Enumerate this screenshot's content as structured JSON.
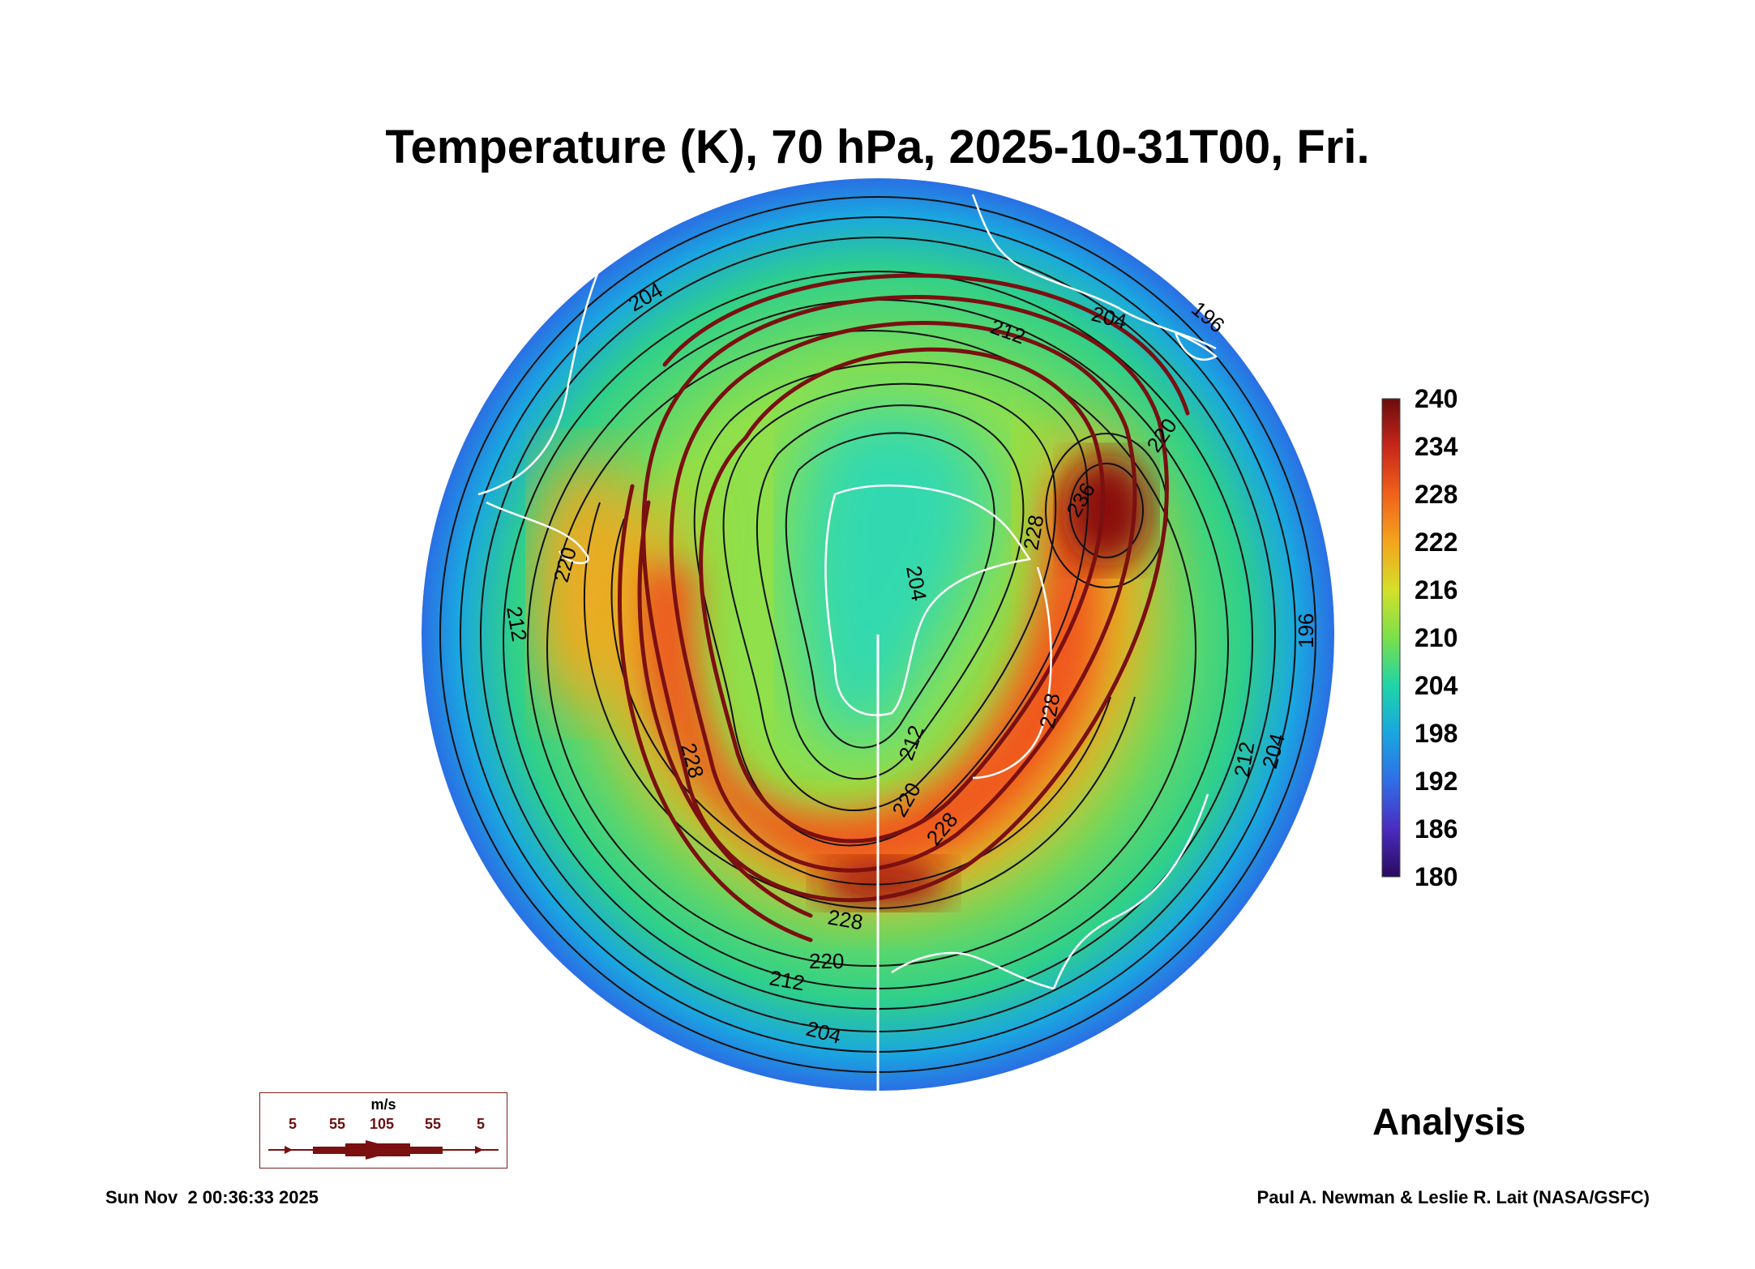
{
  "title": "Temperature (K), 70 hPa, 2025-10-31T00, Fri.",
  "colorbar": {
    "labels": [
      "240",
      "234",
      "228",
      "222",
      "216",
      "210",
      "204",
      "198",
      "192",
      "186",
      "180"
    ],
    "range": [
      180,
      240
    ]
  },
  "contour_labels": [
    "204",
    "196",
    "212",
    "204",
    "220",
    "236",
    "228",
    "220",
    "212",
    "204",
    "196",
    "212",
    "204",
    "212",
    "220",
    "228",
    "228",
    "228",
    "220",
    "212",
    "204",
    "228"
  ],
  "wind_legend": {
    "unit": "m/s",
    "values": [
      "5",
      "55",
      "105",
      "55",
      "5"
    ]
  },
  "analysis_label": "Analysis",
  "timestamp": "Sun Nov  2 00:36:33 2025",
  "credit": "Paul A. Newman & Leslie R. Lait (NASA/GSFC)",
  "colors": {
    "jet": "#7a1010",
    "contour": "#111111",
    "coast": "#ffffff"
  }
}
